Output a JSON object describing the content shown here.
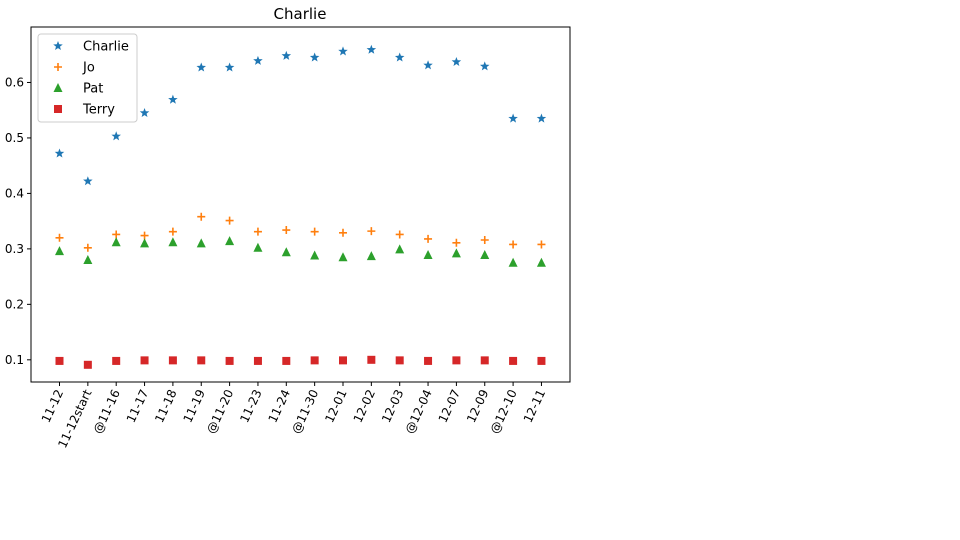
{
  "chart_data": {
    "type": "scatter",
    "title": "Charlie",
    "xlabel": "",
    "ylabel": "",
    "ylim": [
      0.06,
      0.7
    ],
    "yticks": [
      0.1,
      0.2,
      0.3,
      0.4,
      0.5,
      0.6
    ],
    "grid": false,
    "legend_position": "upper-left",
    "categories": [
      "11-12",
      "11-12start",
      "@11-16",
      "11-17",
      "11-18",
      "11-19",
      "@11-20",
      "11-23",
      "11-24",
      "@11-30",
      "12-01",
      "12-02",
      "12-03",
      "@12-04",
      "12-07",
      "12-09",
      "@12-10",
      "12-11"
    ],
    "series": [
      {
        "name": "Charlie",
        "marker": "star",
        "color": "#1f77b4",
        "values": [
          0.472,
          0.422,
          0.503,
          0.545,
          0.569,
          0.627,
          0.627,
          0.639,
          0.648,
          0.645,
          0.656,
          0.659,
          0.645,
          0.631,
          0.637,
          0.629,
          0.535,
          0.535
        ]
      },
      {
        "name": "Jo",
        "marker": "plus",
        "color": "#ff7f0e",
        "values": [
          0.32,
          0.302,
          0.326,
          0.324,
          0.331,
          0.358,
          0.351,
          0.331,
          0.334,
          0.331,
          0.329,
          0.332,
          0.326,
          0.318,
          0.311,
          0.316,
          0.308,
          0.308
        ]
      },
      {
        "name": "Pat",
        "marker": "triangle",
        "color": "#2ca02c",
        "values": [
          0.296,
          0.28,
          0.312,
          0.31,
          0.312,
          0.31,
          0.314,
          0.302,
          0.294,
          0.288,
          0.285,
          0.287,
          0.299,
          0.289,
          0.292,
          0.289,
          0.275,
          0.275
        ]
      },
      {
        "name": "Terry",
        "marker": "square",
        "color": "#d62728",
        "values": [
          0.098,
          0.091,
          0.098,
          0.099,
          0.099,
          0.099,
          0.098,
          0.098,
          0.098,
          0.099,
          0.099,
          0.1,
          0.099,
          0.098,
          0.099,
          0.099,
          0.098,
          0.098
        ]
      }
    ]
  }
}
